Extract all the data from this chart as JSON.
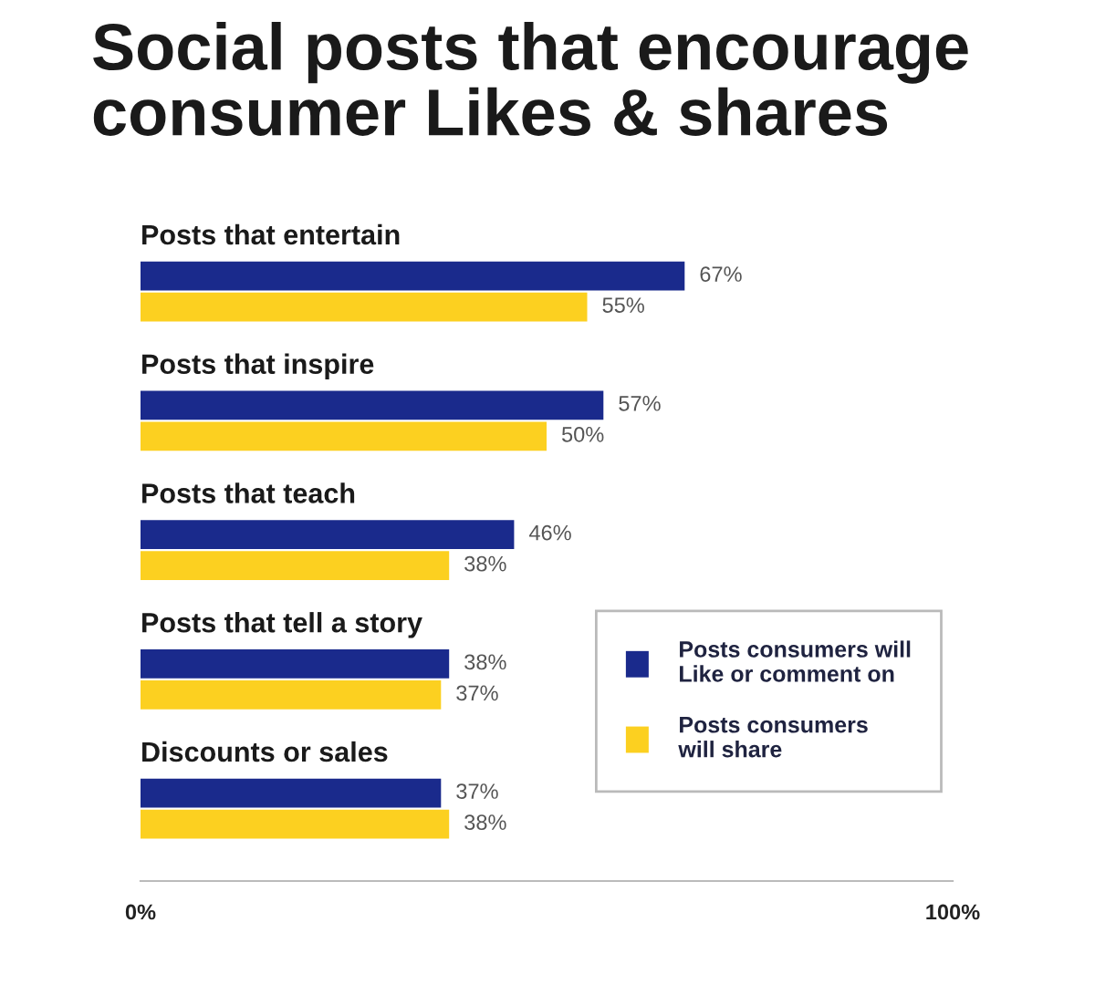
{
  "chart_data": {
    "type": "bar",
    "orientation": "horizontal",
    "title": "Social posts that encourage\nconsumer Likes & shares",
    "categories": [
      "Posts that entertain",
      "Posts that inspire",
      "Posts that teach",
      "Posts that tell a story",
      "Discounts or sales"
    ],
    "series": [
      {
        "name": "Posts consumers will\nLike or comment on",
        "color": "#1a2a8c",
        "values": [
          67,
          57,
          46,
          38,
          37
        ],
        "value_labels": [
          "67%",
          "57%",
          "46%",
          "38%",
          "37%"
        ]
      },
      {
        "name": "Posts consumers\nwill share",
        "color": "#fcd020",
        "values": [
          55,
          50,
          38,
          37,
          38
        ],
        "value_labels": [
          "55%",
          "50%",
          "38%",
          "37%",
          "38%"
        ]
      }
    ],
    "xlim": [
      0,
      100
    ],
    "xticks": [
      {
        "value": 0,
        "label": "0%"
      },
      {
        "value": 100,
        "label": "100%"
      }
    ],
    "legend": "right"
  }
}
